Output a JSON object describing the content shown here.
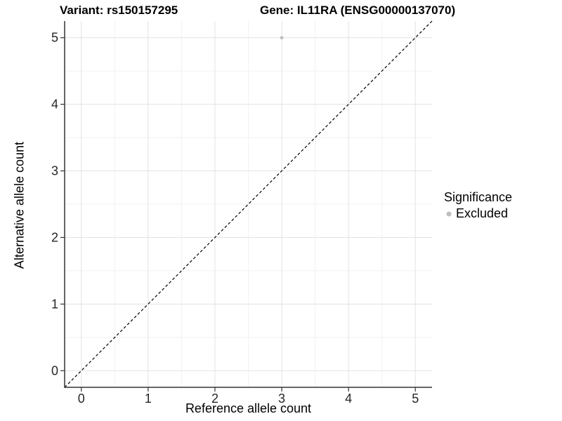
{
  "header": {
    "title_left": "Variant: rs150157295",
    "title_right": "Gene: IL11RA (ENSG00000137070)"
  },
  "chart_data": {
    "type": "scatter",
    "title": "Variant: rs150157295  /  Gene: IL11RA (ENSG00000137070)",
    "xlabel": "Reference allele count",
    "ylabel": "Alternative allele count",
    "xlim": [
      -0.25,
      5.25
    ],
    "ylim": [
      -0.25,
      5.25
    ],
    "xticks": [
      0,
      1,
      2,
      3,
      4,
      5
    ],
    "yticks": [
      0,
      1,
      2,
      3,
      4,
      5
    ],
    "minor_step": 0.5,
    "grid": "major and minor on white background",
    "series": [
      {
        "name": "Excluded",
        "color": "#bebebe",
        "point_radius": 2.4,
        "points": [
          {
            "x": 3,
            "y": 5
          }
        ]
      }
    ],
    "reference_line": {
      "kind": "identity y=x",
      "style": "dashed",
      "color": "#000000"
    },
    "legend": {
      "title": "Significance",
      "position": "right",
      "items": [
        {
          "label": "Excluded",
          "color": "#bebebe"
        }
      ]
    },
    "colors": {
      "grid_major": "#e3e3e3",
      "grid_minor": "#f1f1f1",
      "axis_line": "#333333",
      "tick_mark": "#333333",
      "tick_label": "#262626"
    }
  }
}
